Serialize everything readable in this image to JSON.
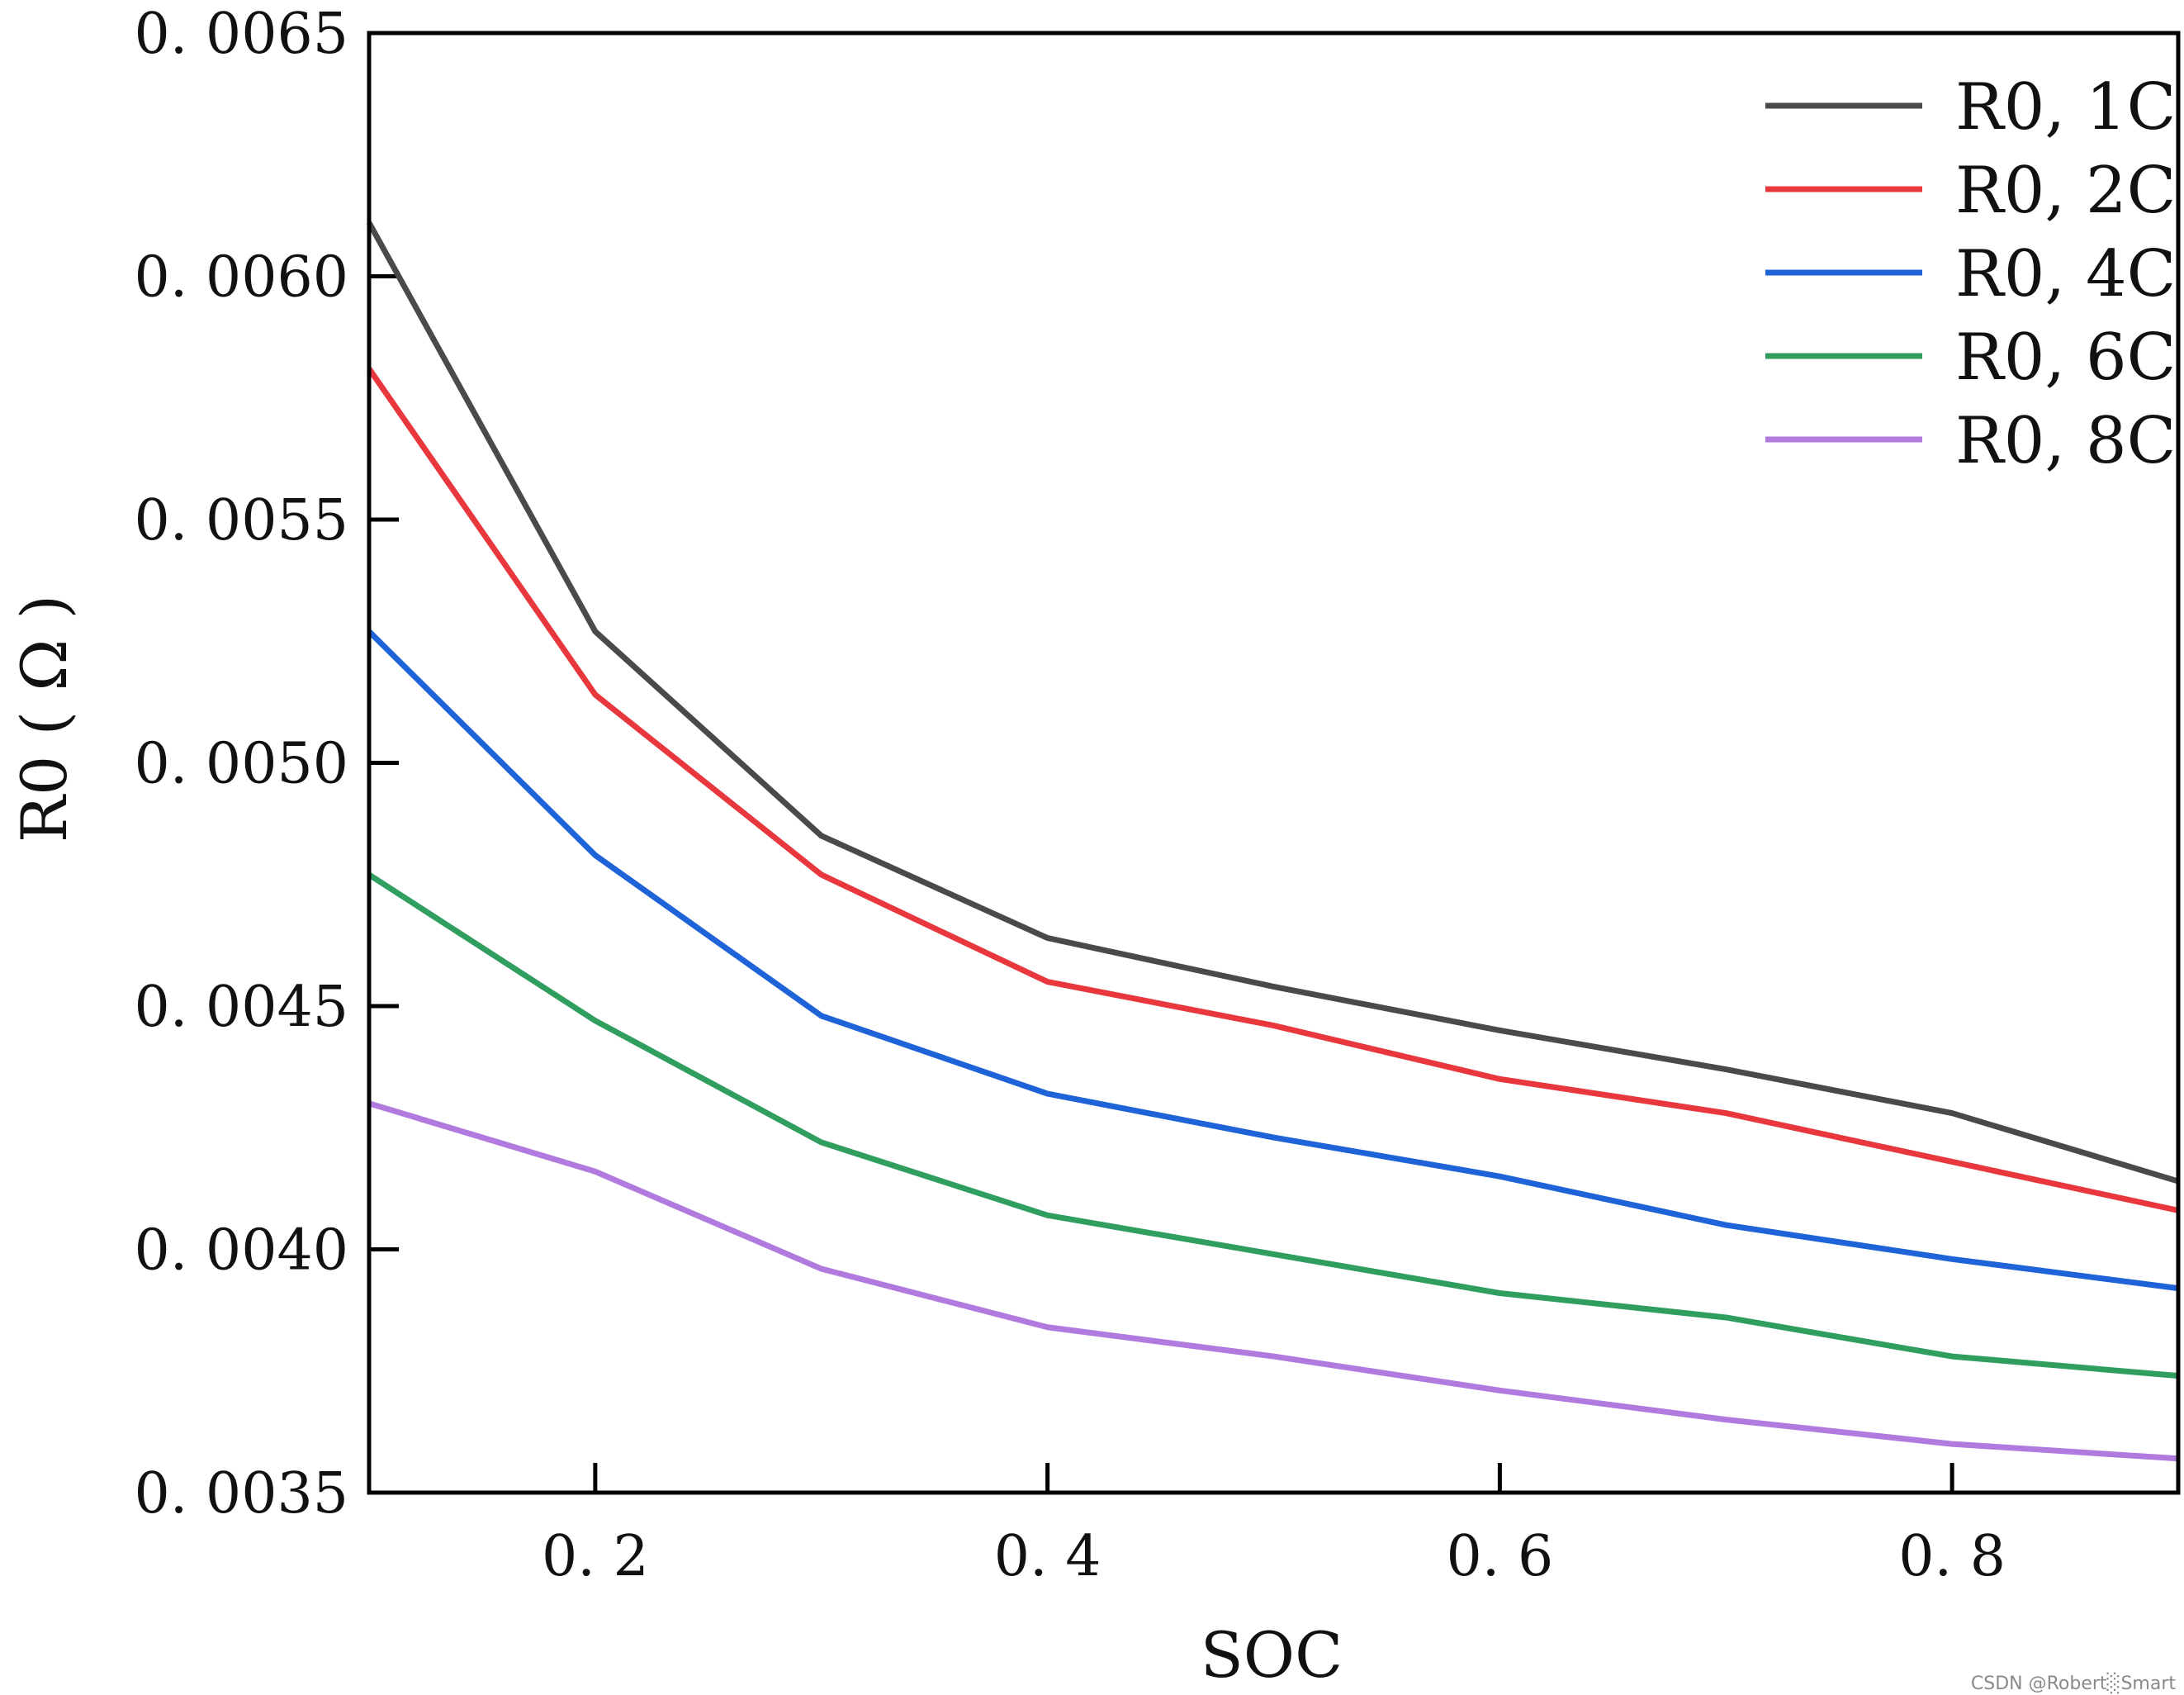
{
  "chart_data": {
    "type": "line",
    "title": "",
    "xlabel": "SOC",
    "ylabel": "R0 ( Ω )",
    "xlim": [
      0.1,
      0.9
    ],
    "ylim": [
      0.0035,
      0.0065
    ],
    "xticks": [
      0.2,
      0.4,
      0.6,
      0.8
    ],
    "xtick_labels": [
      "0. 2",
      "0. 4",
      "0. 6",
      "0. 8"
    ],
    "yticks": [
      0.0035,
      0.004,
      0.0045,
      0.005,
      0.0055,
      0.006,
      0.0065
    ],
    "ytick_labels": [
      "0. 0035",
      "0. 0040",
      "0. 0045",
      "0. 0050",
      "0. 0055",
      "0. 0060",
      "0. 0065"
    ],
    "legend_position": "top-right",
    "x": [
      0.1,
      0.2,
      0.3,
      0.4,
      0.5,
      0.6,
      0.7,
      0.8,
      0.9
    ],
    "series": [
      {
        "name": "R0, 1C",
        "color": "#4a4a4a",
        "values": [
          0.00611,
          0.00527,
          0.00485,
          0.00464,
          0.00454,
          0.00445,
          0.00437,
          0.00428,
          0.00414
        ]
      },
      {
        "name": "R0, 2C",
        "color": "#e8383d",
        "values": [
          0.00581,
          0.00514,
          0.00477,
          0.00455,
          0.00446,
          0.00435,
          0.00428,
          0.00418,
          0.00408
        ]
      },
      {
        "name": "R0, 4C",
        "color": "#1f63d8",
        "values": [
          0.00527,
          0.00481,
          0.00448,
          0.00432,
          0.00423,
          0.00415,
          0.00405,
          0.00398,
          0.00392
        ]
      },
      {
        "name": "R0, 6C",
        "color": "#2f9e5e",
        "values": [
          0.00477,
          0.00447,
          0.00422,
          0.00407,
          0.00399,
          0.00391,
          0.00386,
          0.00378,
          0.00374
        ]
      },
      {
        "name": "R0, 8C",
        "color": "#b07adf",
        "values": [
          0.0043,
          0.00416,
          0.00396,
          0.00384,
          0.00378,
          0.00371,
          0.00365,
          0.0036,
          0.00357
        ]
      }
    ]
  },
  "watermark": "CSDN @Robert░Smart"
}
